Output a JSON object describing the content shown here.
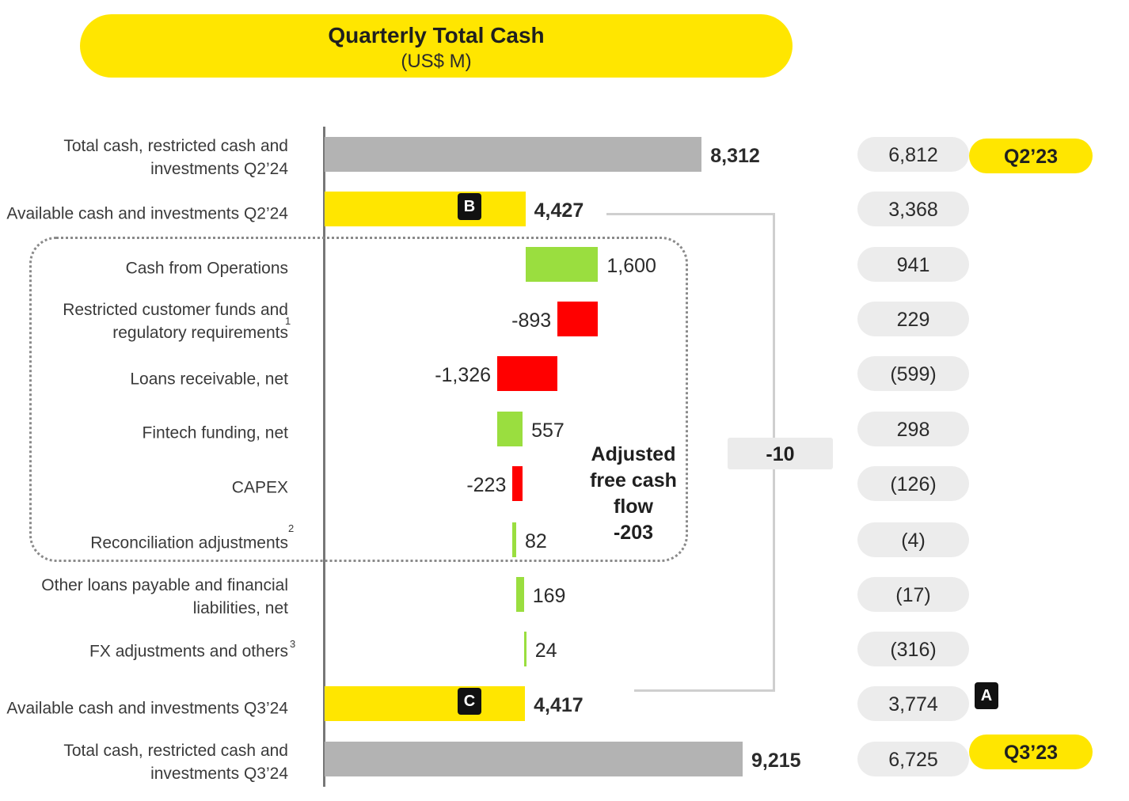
{
  "title": "Quarterly Total Cash",
  "subtitle": "(US$ M)",
  "colors": {
    "total": "#b3b3b3",
    "available": "#ffe600",
    "positive": "#9ade3f",
    "negative": "#ff0000",
    "pill_gray": "#ececec",
    "brand_yellow": "#ffe600"
  },
  "chart_data": {
    "type": "waterfall",
    "title": "Quarterly Total Cash",
    "subtitle": "(US$ M)",
    "rows": [
      {
        "label": "Total cash, restricted cash and investments Q2’24",
        "value": 8312,
        "value_label": "8,312",
        "kind": "total",
        "prior": "6,812"
      },
      {
        "label": "Available cash and investments Q2’24",
        "value": 4427,
        "value_label": "4,427",
        "kind": "available",
        "marker": "B",
        "prior": "3,368"
      },
      {
        "label": "Cash from Operations",
        "value": 1600,
        "value_label": "1,600",
        "kind": "delta",
        "prior": "941"
      },
      {
        "label": "Restricted customer funds and regulatory requirements",
        "footnote": "1",
        "value": -893,
        "value_label": "-893",
        "kind": "delta",
        "prior": "229"
      },
      {
        "label": "Loans receivable, net",
        "value": -1326,
        "value_label": "-1,326",
        "kind": "delta",
        "prior": "(599)"
      },
      {
        "label": "Fintech funding, net",
        "value": 557,
        "value_label": "557",
        "kind": "delta",
        "prior": "298"
      },
      {
        "label": "CAPEX",
        "value": -223,
        "value_label": "-223",
        "kind": "delta",
        "prior": "(126)"
      },
      {
        "label": "Reconciliation adjustments",
        "footnote": "2",
        "value": 82,
        "value_label": "82",
        "kind": "delta",
        "prior": "(4)"
      },
      {
        "label": "Other loans payable and financial liabilities, net",
        "value": 169,
        "value_label": "169",
        "kind": "delta",
        "prior": "(17)"
      },
      {
        "label": "FX adjustments and others",
        "footnote": "3",
        "value": 24,
        "value_label": "24",
        "kind": "delta",
        "prior": "(316)"
      },
      {
        "label": "Available cash and investments Q3’24",
        "value": 4417,
        "value_label": "4,417",
        "kind": "available",
        "marker": "C",
        "prior": "3,774",
        "prior_marker": "A"
      },
      {
        "label": "Total cash, restricted cash and investments Q3’24",
        "value": 9215,
        "value_label": "9,215",
        "kind": "total",
        "prior": "6,725"
      }
    ],
    "adjusted_free_cash_flow": {
      "label": "Adjusted free cash flow",
      "value": "-203"
    },
    "available_cash_change": "-10",
    "comparison_periods": [
      "Q2’23",
      "Q3’23"
    ]
  }
}
